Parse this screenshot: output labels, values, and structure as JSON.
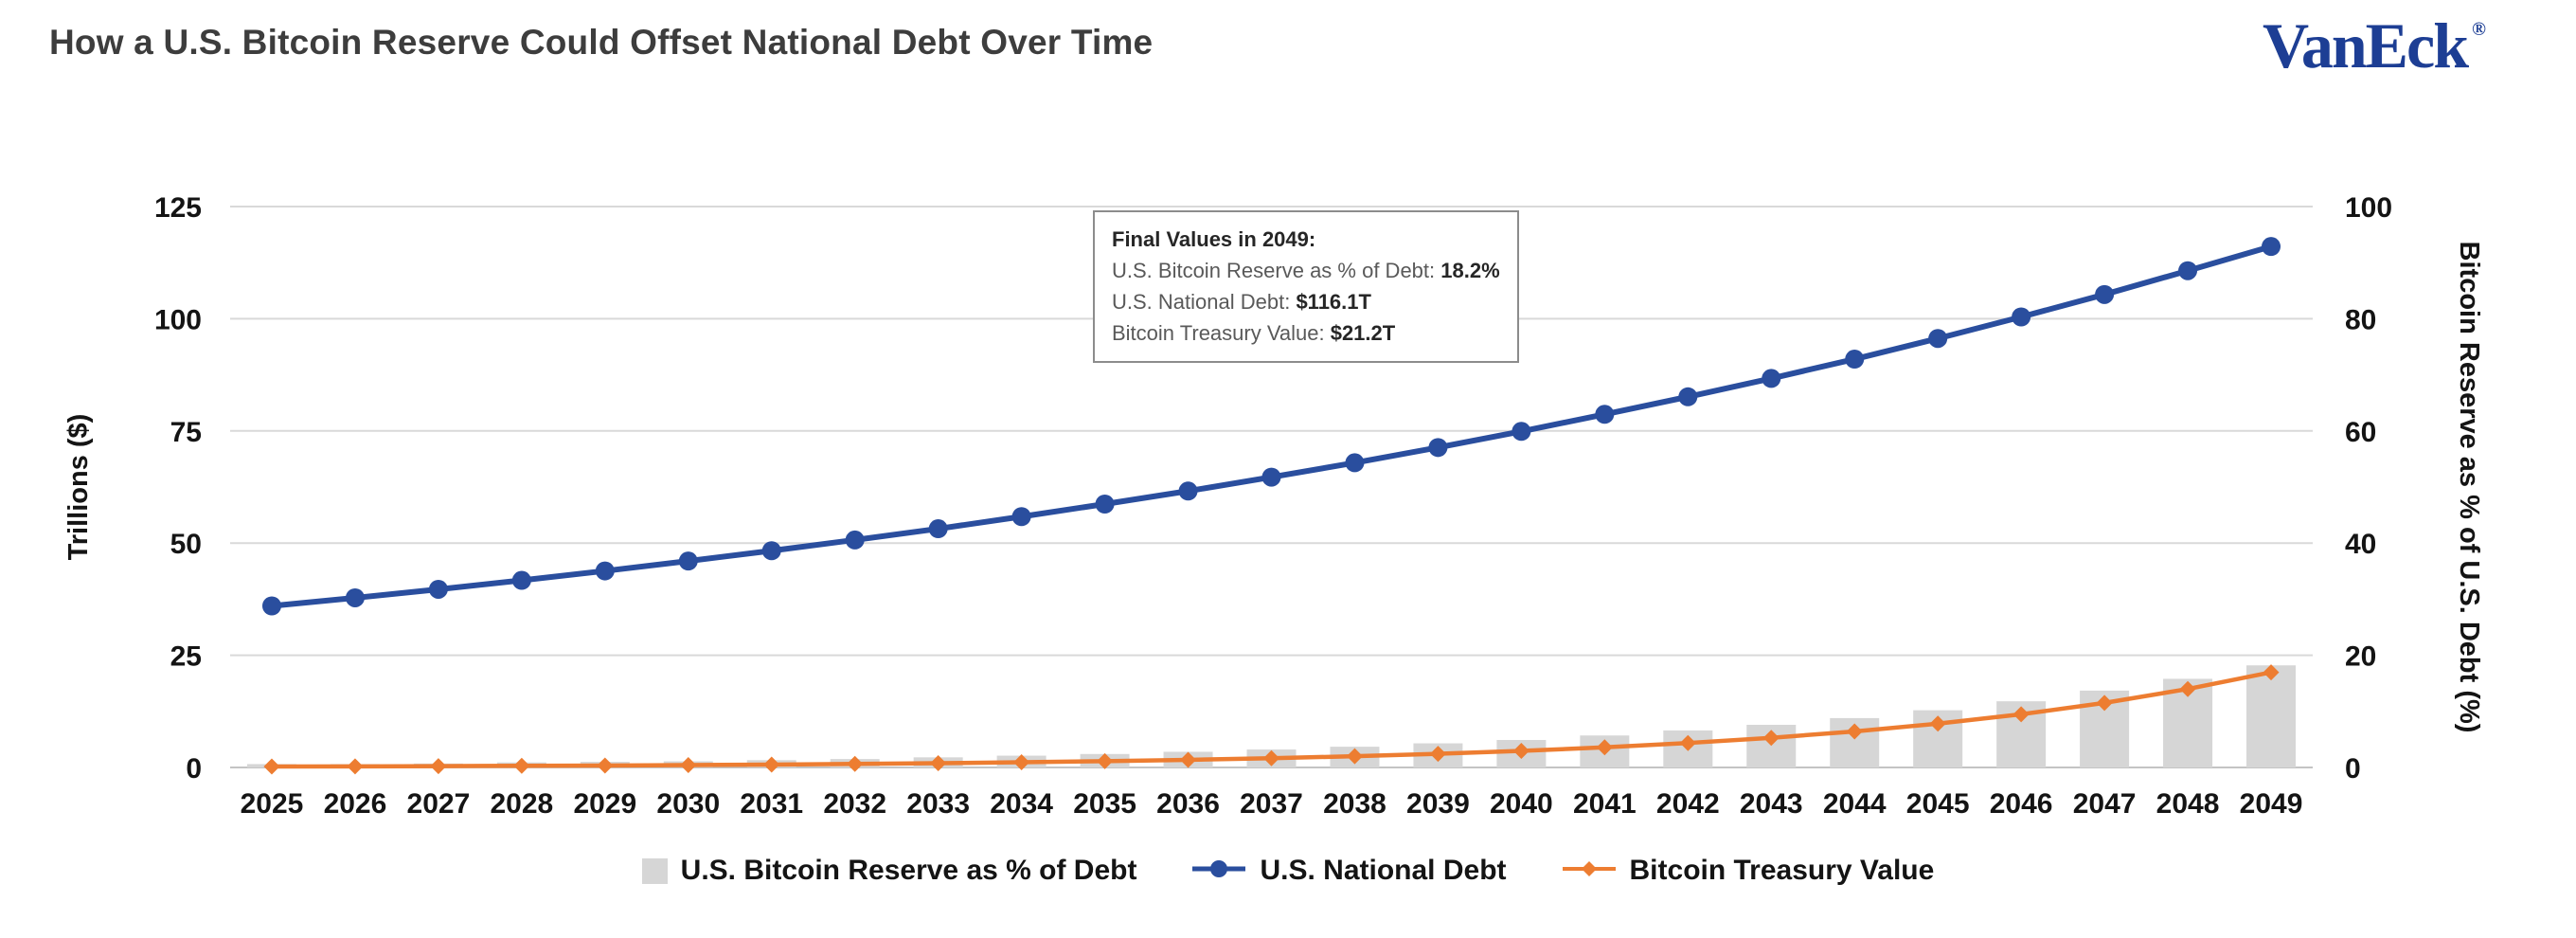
{
  "page": {
    "title": "How a U.S. Bitcoin Reserve Could Offset National Debt Over Time",
    "logo_text": "VanEck",
    "logo_registered": "®"
  },
  "colors": {
    "title_text": "#3d3d3d",
    "logo_blue": "#1d3e94",
    "axis_text": "#141414",
    "grid": "#d9d9d9",
    "reserve_bar": "#d6d6d6",
    "debt_line": "#2a4e9e",
    "treasury_line": "#ed7d31",
    "annotation_border": "#8c8c8c",
    "annotation_label": "#595959",
    "annotation_value": "#262626"
  },
  "annotation": {
    "heading": "Final Values in 2049:",
    "lines": [
      {
        "label": "U.S. Bitcoin Reserve as % of Debt: ",
        "value": "18.2%"
      },
      {
        "label": "U.S. National Debt: ",
        "value": "$116.1T"
      },
      {
        "label": "Bitcoin Treasury Value: ",
        "value": "$21.2T"
      }
    ]
  },
  "chart_data": {
    "type": "combo",
    "title": "How a U.S. Bitcoin Reserve Could Offset National Debt Over Time",
    "categories": [
      2025,
      2026,
      2027,
      2028,
      2029,
      2030,
      2031,
      2032,
      2033,
      2034,
      2035,
      2036,
      2037,
      2038,
      2039,
      2040,
      2041,
      2042,
      2043,
      2044,
      2045,
      2046,
      2047,
      2048,
      2049
    ],
    "left_axis": {
      "title": "Trillions ($)",
      "ticks": [
        0,
        25,
        50,
        75,
        100,
        125
      ],
      "max": 125
    },
    "right_axis": {
      "title": "Bitcoin Reserve as % of U.S. Debt (%)",
      "ticks": [
        0,
        20,
        40,
        60,
        80,
        100
      ],
      "max": 100
    },
    "grid": true,
    "legend_position": "bottom",
    "series": [
      {
        "name": "U.S. Bitcoin Reserve as % of Debt",
        "type": "bar",
        "axis": "right",
        "color_key": "reserve_bar",
        "values": [
          0.6,
          0.6,
          0.7,
          0.9,
          1.0,
          1.1,
          1.3,
          1.5,
          1.8,
          2.1,
          2.4,
          2.8,
          3.2,
          3.7,
          4.3,
          4.9,
          5.7,
          6.6,
          7.6,
          8.8,
          10.2,
          11.8,
          13.7,
          15.8,
          18.2
        ]
      },
      {
        "name": "U.S. National Debt",
        "type": "line",
        "marker": "circle",
        "axis": "left",
        "color_key": "debt_line",
        "values": [
          36.0,
          37.8,
          39.7,
          41.7,
          43.8,
          46.0,
          48.3,
          50.7,
          53.2,
          55.9,
          58.7,
          61.6,
          64.7,
          67.9,
          71.3,
          74.9,
          78.7,
          82.6,
          86.7,
          91.0,
          95.6,
          100.4,
          105.4,
          110.7,
          116.1
        ]
      },
      {
        "name": "Bitcoin Treasury Value",
        "type": "line",
        "marker": "diamond",
        "axis": "left",
        "color_key": "treasury_line",
        "values": [
          0.2,
          0.24,
          0.3,
          0.36,
          0.43,
          0.53,
          0.64,
          0.78,
          0.95,
          1.15,
          1.4,
          1.7,
          2.06,
          2.5,
          3.04,
          3.69,
          4.48,
          5.45,
          6.61,
          8.03,
          9.76,
          11.85,
          14.39,
          17.48,
          21.2
        ]
      }
    ]
  }
}
